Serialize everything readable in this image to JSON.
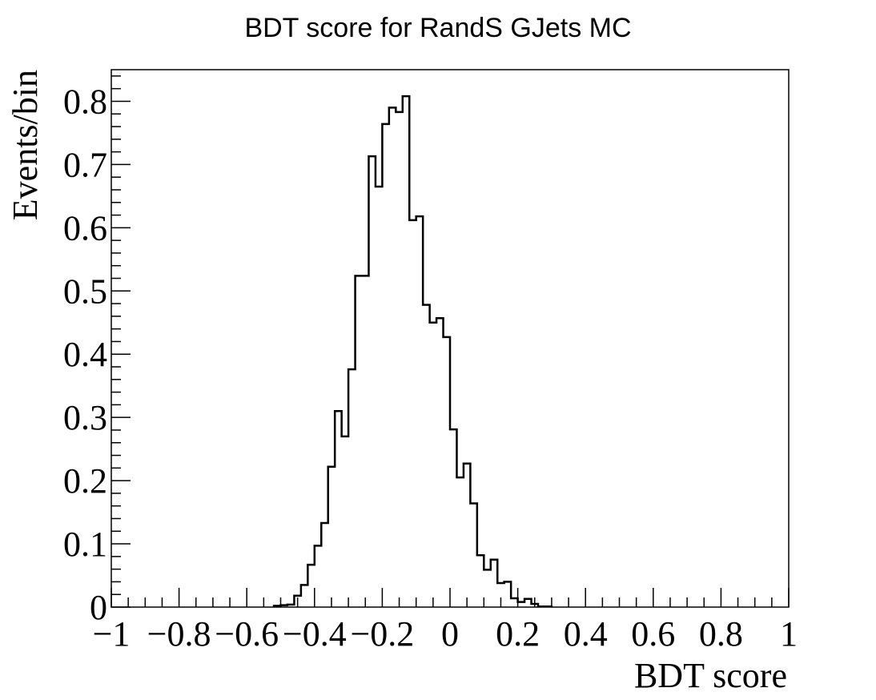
{
  "chart_data": {
    "type": "bar",
    "title": "BDT score for RandS GJets MC",
    "xlabel": "BDT score",
    "ylabel": "Events/bin",
    "xlim": [
      -1,
      1
    ],
    "ylim": [
      0,
      0.85
    ],
    "bin_width": 0.02,
    "x_ticks": [
      -1,
      -0.8,
      -0.6,
      -0.4,
      -0.2,
      0,
      0.2,
      0.4,
      0.6,
      0.8,
      1
    ],
    "x_tick_labels": [
      "−1",
      "−0.8",
      "−0.6",
      "−0.4",
      "−0.2",
      "0",
      "0.2",
      "0.4",
      "0.6",
      "0.8",
      "1"
    ],
    "y_ticks": [
      0,
      0.1,
      0.2,
      0.3,
      0.4,
      0.5,
      0.6,
      0.7,
      0.8
    ],
    "y_tick_labels": [
      "0",
      "0.1",
      "0.2",
      "0.3",
      "0.4",
      "0.5",
      "0.6",
      "0.7",
      "0.8"
    ],
    "line_color": "#000000",
    "grid": false,
    "bin_low_edges": [
      -0.52,
      -0.5,
      -0.48,
      -0.46,
      -0.44,
      -0.42,
      -0.4,
      -0.38,
      -0.36,
      -0.34,
      -0.32,
      -0.3,
      -0.28,
      -0.26,
      -0.24,
      -0.22,
      -0.2,
      -0.18,
      -0.16,
      -0.14,
      -0.12,
      -0.1,
      -0.08,
      -0.06,
      -0.04,
      -0.02,
      0.0,
      0.02,
      0.04,
      0.06,
      0.08,
      0.1,
      0.12,
      0.14,
      0.16,
      0.18,
      0.2,
      0.22,
      0.24,
      0.26,
      0.28
    ],
    "values": [
      0.002,
      0.003,
      0.004,
      0.018,
      0.035,
      0.067,
      0.097,
      0.133,
      0.222,
      0.31,
      0.27,
      0.376,
      0.524,
      0.524,
      0.713,
      0.665,
      0.764,
      0.79,
      0.783,
      0.808,
      0.612,
      0.618,
      0.478,
      0.45,
      0.457,
      0.427,
      0.281,
      0.205,
      0.227,
      0.164,
      0.082,
      0.059,
      0.075,
      0.038,
      0.04,
      0.014,
      0.008,
      0.013,
      0.005,
      0.001,
      0.001
    ]
  }
}
